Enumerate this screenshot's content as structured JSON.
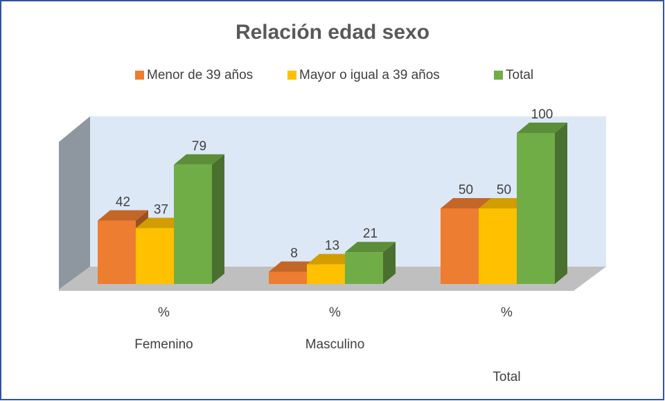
{
  "chart_data": {
    "type": "bar3d",
    "title": "Relación edad sexo",
    "categories": [
      "%",
      "%",
      "%"
    ],
    "groups": [
      "Femenino",
      "Masculino",
      "Total"
    ],
    "series": [
      {
        "name": "Menor de 39 años",
        "color": "#ed7d31",
        "values": [
          42,
          8,
          50
        ]
      },
      {
        "name": "Mayor o igual a 39 años",
        "color": "#ffc000",
        "values": [
          37,
          13,
          50
        ]
      },
      {
        "name": "Total",
        "color": "#70ad47",
        "values": [
          79,
          21,
          100
        ]
      }
    ],
    "legend": "top"
  }
}
